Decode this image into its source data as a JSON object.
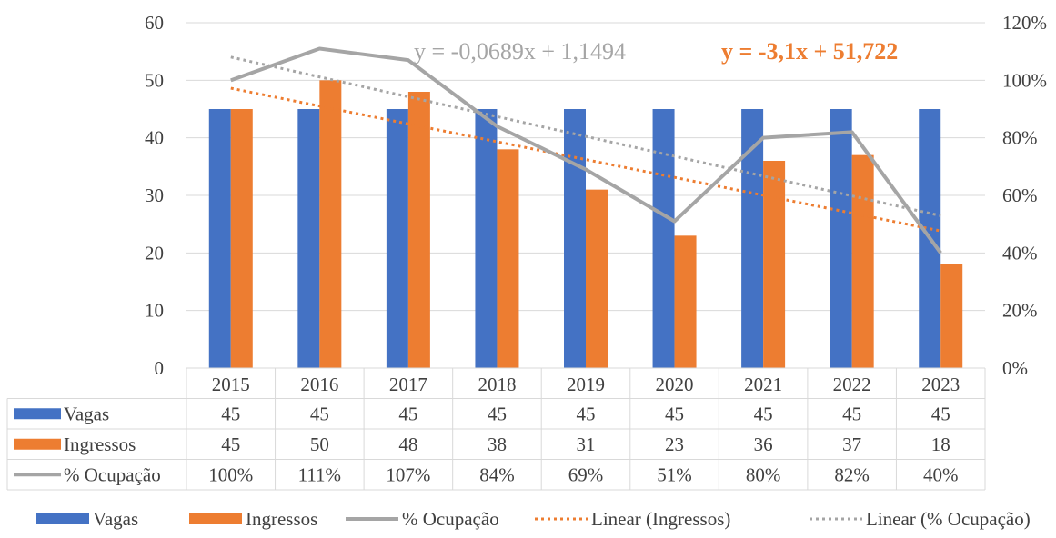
{
  "chart_data": {
    "type": "bar",
    "categories": [
      "2015",
      "2016",
      "2017",
      "2018",
      "2019",
      "2020",
      "2021",
      "2022",
      "2023"
    ],
    "series": [
      {
        "name": "Vagas",
        "type": "bar",
        "axis": "left",
        "color": "#4472C4",
        "values": [
          45,
          45,
          45,
          45,
          45,
          45,
          45,
          45,
          45
        ]
      },
      {
        "name": "Ingressos",
        "type": "bar",
        "axis": "left",
        "color": "#ED7D31",
        "values": [
          45,
          50,
          48,
          38,
          31,
          23,
          36,
          37,
          18
        ]
      },
      {
        "name": "% Ocupação",
        "type": "line",
        "axis": "right",
        "color": "#A5A5A5",
        "values": [
          1.0,
          1.11,
          1.07,
          0.84,
          0.69,
          0.51,
          0.8,
          0.82,
          0.4
        ],
        "labels": [
          "100%",
          "111%",
          "107%",
          "84%",
          "69%",
          "51%",
          "80%",
          "82%",
          "40%"
        ]
      }
    ],
    "trendlines": [
      {
        "name": "Linear (Ingressos)",
        "of": "Ingressos",
        "axis": "left",
        "color": "#ED7D31",
        "style": "dotted",
        "slope": -3.1,
        "intercept": 51.722,
        "equation": "y = -3,1x + 51,722"
      },
      {
        "name": "Linear (% Ocupação)",
        "of": "% Ocupação",
        "axis": "right",
        "color": "#A5A5A5",
        "style": "dotted",
        "slope": -0.0689,
        "intercept": 1.1494,
        "equation": "y = -0,0689x + 1,1494"
      }
    ],
    "y_left": {
      "range": [
        0,
        60
      ],
      "ticks": [
        "0",
        "10",
        "20",
        "30",
        "40",
        "50",
        "60"
      ]
    },
    "y_right": {
      "range": [
        0,
        1.2
      ],
      "ticks": [
        "0%",
        "20%",
        "40%",
        "60%",
        "80%",
        "100%",
        "120%"
      ]
    },
    "grid": true,
    "data_table": true,
    "legend_position": "bottom",
    "legend": [
      "Vagas",
      "Ingressos",
      "% Ocupação",
      "Linear (Ingressos)",
      "Linear (% Ocupação)"
    ],
    "title": "",
    "xlabel": "",
    "ylabel": ""
  }
}
